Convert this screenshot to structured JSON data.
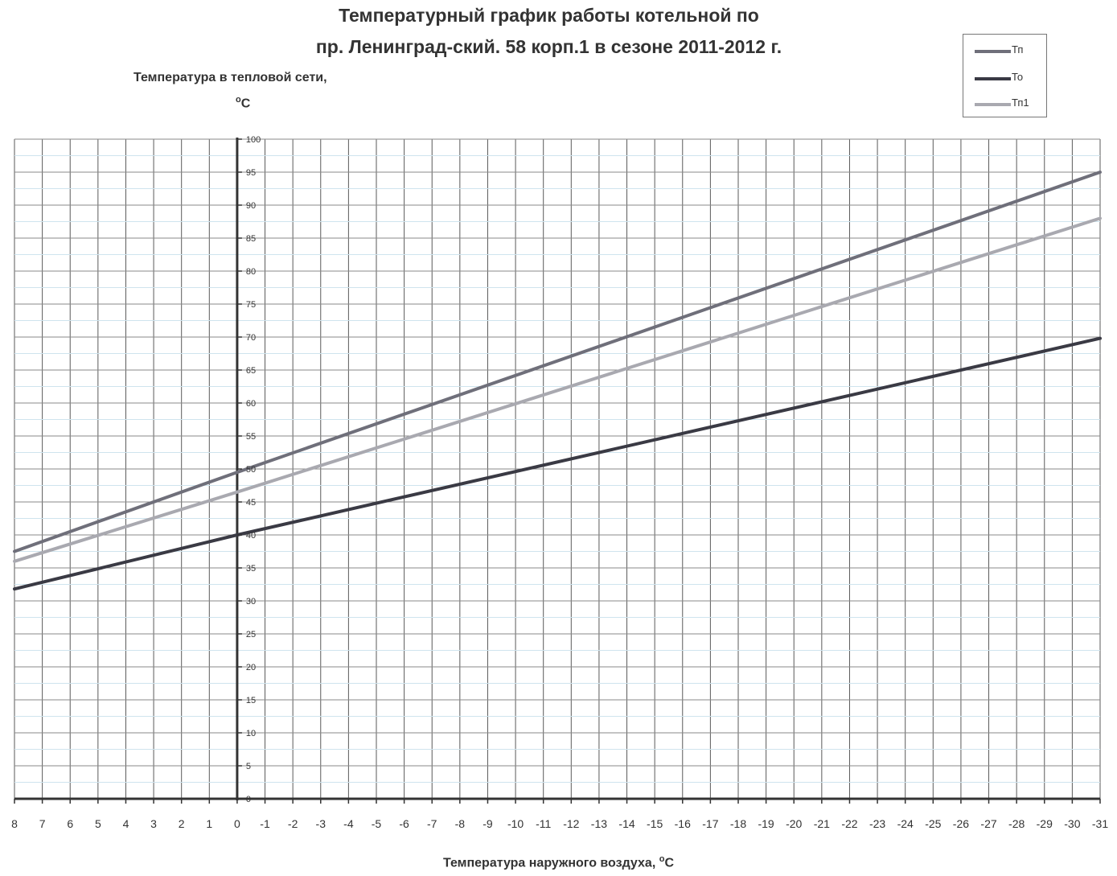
{
  "title_line1": "Температурный график работы котельной  по",
  "title_line2": "пр. Ленинград-ский. 58 корп.1 в сезоне 2011-2012 г.",
  "ylabel_line1": "Температура в тепловой сети,",
  "ylabel_line2_prefix": "o",
  "ylabel_line2_suffix": "C",
  "xlabel_text": "Температура наружного воздуха, ",
  "xlabel_deg": "o",
  "xlabel_unit": "C",
  "legend": [
    {
      "name": "Тп",
      "color": "#6f6f7a"
    },
    {
      "name": "То",
      "color": "#3a3a44"
    },
    {
      "name": "Тп1",
      "color": "#a9a9b0"
    }
  ],
  "chart_data": {
    "type": "line",
    "title": "Температурный график работы котельной  по пр. Ленинград-ский. 58 корп.1 в сезоне 2011-2012 г.",
    "xlabel": "Температура наружного воздуха, °C",
    "ylabel": "Температура в тепловой сети, °C",
    "xlim": [
      8,
      -31
    ],
    "ylim": [
      0,
      100
    ],
    "x_ticks": [
      "8",
      "7",
      "6",
      "5",
      "4",
      "3",
      "2",
      "1",
      "0",
      "-1",
      "-2",
      "-3",
      "-4",
      "-5",
      "-6",
      "-7",
      "-8",
      "-9",
      "-10",
      "-11",
      "-12",
      "-13",
      "-14",
      "-15",
      "-16",
      "-17",
      "-18",
      "-19",
      "-20",
      "-21",
      "-22",
      "-23",
      "-24",
      "-25",
      "-26",
      "-27",
      "-28",
      "-29",
      "-30",
      "-31"
    ],
    "y_ticks": [
      "0",
      "5",
      "10",
      "15",
      "20",
      "25",
      "30",
      "35",
      "40",
      "45",
      "50",
      "55",
      "60",
      "65",
      "70",
      "75",
      "80",
      "85",
      "90",
      "95",
      "100"
    ],
    "grid": true,
    "legend_position": "top-right",
    "series": [
      {
        "name": "Тп",
        "color": "#6f6f7a",
        "x": [
          8,
          0,
          -31
        ],
        "y": [
          37.5,
          49.5,
          95
        ]
      },
      {
        "name": "То",
        "color": "#3a3a44",
        "x": [
          8,
          0,
          -31
        ],
        "y": [
          31.8,
          40,
          69.8
        ]
      },
      {
        "name": "Тп1",
        "color": "#a9a9b0",
        "x": [
          8,
          0,
          -31
        ],
        "y": [
          36,
          46.5,
          88
        ]
      }
    ]
  }
}
